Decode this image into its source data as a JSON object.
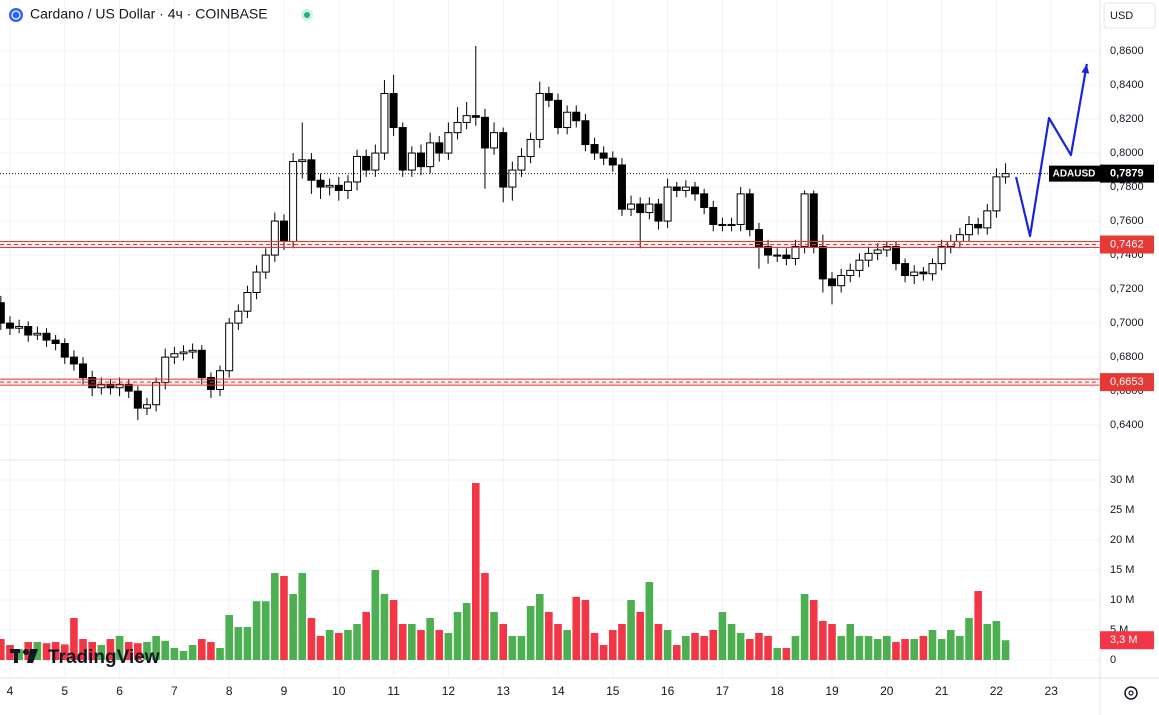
{
  "chart_data": {
    "type": "candlestick",
    "title": "Cardano / US Dollar · 4ч · COINBASE",
    "currency": "USD",
    "watermark": "TradingView",
    "symbol": "ADAUSD",
    "x": [
      3.833,
      4,
      4.167,
      4.333,
      4.5,
      4.667,
      4.833,
      5,
      5.167,
      5.333,
      5.5,
      5.667,
      5.833,
      6,
      6.167,
      6.333,
      6.5,
      6.667,
      6.833,
      7,
      7.167,
      7.333,
      7.5,
      7.667,
      7.833,
      8,
      8.167,
      8.333,
      8.5,
      8.667,
      8.833,
      9,
      9.167,
      9.333,
      9.5,
      9.667,
      9.833,
      10,
      10.167,
      10.333,
      10.5,
      10.667,
      10.833,
      11,
      11.167,
      11.333,
      11.5,
      11.667,
      11.833,
      12,
      12.167,
      12.333,
      12.5,
      12.667,
      12.833,
      13,
      13.167,
      13.333,
      13.5,
      13.667,
      13.833,
      14,
      14.167,
      14.333,
      14.5,
      14.667,
      14.833,
      15,
      15.167,
      15.333,
      15.5,
      15.667,
      15.833,
      16,
      16.167,
      16.333,
      16.5,
      16.667,
      16.833,
      17,
      17.167,
      17.333,
      17.5,
      17.667,
      17.833,
      18,
      18.167,
      18.333,
      18.5,
      18.667,
      18.833,
      19,
      19.167,
      19.333,
      19.5,
      19.667,
      19.833,
      20,
      20.167,
      20.333,
      20.5,
      20.667,
      20.833,
      21,
      21.167,
      21.333,
      21.5,
      21.667,
      21.833,
      22,
      22.167
    ],
    "open": [
      0.712,
      0.7,
      0.697,
      0.698,
      0.693,
      0.694,
      0.69,
      0.688,
      0.68,
      0.676,
      0.668,
      0.662,
      0.664,
      0.662,
      0.664,
      0.66,
      0.65,
      0.652,
      0.665,
      0.68,
      0.682,
      0.683,
      0.684,
      0.668,
      0.661,
      0.672,
      0.7,
      0.707,
      0.718,
      0.73,
      0.74,
      0.76,
      0.748,
      0.795,
      0.796,
      0.784,
      0.78,
      0.781,
      0.778,
      0.783,
      0.798,
      0.79,
      0.8,
      0.835,
      0.815,
      0.79,
      0.8,
      0.792,
      0.806,
      0.8,
      0.812,
      0.818,
      0.822,
      0.821,
      0.803,
      0.812,
      0.78,
      0.79,
      0.798,
      0.808,
      0.835,
      0.831,
      0.815,
      0.824,
      0.819,
      0.805,
      0.8,
      0.797,
      0.793,
      0.767,
      0.77,
      0.765,
      0.77,
      0.76,
      0.78,
      0.778,
      0.78,
      0.776,
      0.768,
      0.758,
      0.758,
      0.758,
      0.776,
      0.755,
      0.745,
      0.74,
      0.74,
      0.738,
      0.745,
      0.776,
      0.745,
      0.726,
      0.722,
      0.728,
      0.731,
      0.737,
      0.741,
      0.743,
      0.745,
      0.735,
      0.728,
      0.73,
      0.729,
      0.735,
      0.745,
      0.748,
      0.752,
      0.758,
      0.756,
      0.766,
      0.786
    ],
    "high": [
      0.716,
      0.704,
      0.702,
      0.701,
      0.698,
      0.697,
      0.693,
      0.691,
      0.684,
      0.68,
      0.672,
      0.668,
      0.667,
      0.668,
      0.667,
      0.663,
      0.656,
      0.668,
      0.685,
      0.686,
      0.687,
      0.688,
      0.687,
      0.671,
      0.675,
      0.703,
      0.711,
      0.722,
      0.734,
      0.744,
      0.765,
      0.764,
      0.8,
      0.818,
      0.8,
      0.788,
      0.785,
      0.786,
      0.787,
      0.802,
      0.802,
      0.805,
      0.843,
      0.846,
      0.818,
      0.804,
      0.805,
      0.812,
      0.81,
      0.818,
      0.827,
      0.83,
      0.863,
      0.826,
      0.818,
      0.815,
      0.795,
      0.803,
      0.812,
      0.842,
      0.839,
      0.835,
      0.828,
      0.828,
      0.823,
      0.809,
      0.804,
      0.801,
      0.797,
      0.775,
      0.774,
      0.774,
      0.773,
      0.785,
      0.783,
      0.784,
      0.783,
      0.779,
      0.772,
      0.762,
      0.762,
      0.78,
      0.779,
      0.759,
      0.749,
      0.744,
      0.744,
      0.749,
      0.778,
      0.778,
      0.752,
      0.73,
      0.732,
      0.735,
      0.741,
      0.745,
      0.747,
      0.748,
      0.748,
      0.738,
      0.734,
      0.733,
      0.738,
      0.749,
      0.752,
      0.756,
      0.763,
      0.762,
      0.77,
      0.791,
      0.794
    ],
    "low": [
      0.696,
      0.693,
      0.694,
      0.689,
      0.69,
      0.686,
      0.684,
      0.676,
      0.672,
      0.664,
      0.657,
      0.658,
      0.658,
      0.657,
      0.656,
      0.643,
      0.646,
      0.648,
      0.661,
      0.676,
      0.678,
      0.679,
      0.664,
      0.656,
      0.657,
      0.668,
      0.696,
      0.703,
      0.714,
      0.726,
      0.736,
      0.743,
      0.744,
      0.785,
      0.776,
      0.773,
      0.775,
      0.772,
      0.773,
      0.778,
      0.786,
      0.786,
      0.796,
      0.81,
      0.786,
      0.786,
      0.787,
      0.788,
      0.795,
      0.796,
      0.808,
      0.814,
      0.816,
      0.779,
      0.799,
      0.771,
      0.772,
      0.786,
      0.794,
      0.803,
      0.827,
      0.811,
      0.811,
      0.815,
      0.801,
      0.796,
      0.793,
      0.789,
      0.763,
      0.763,
      0.744,
      0.761,
      0.755,
      0.756,
      0.774,
      0.774,
      0.772,
      0.764,
      0.754,
      0.754,
      0.754,
      0.754,
      0.751,
      0.732,
      0.735,
      0.736,
      0.734,
      0.734,
      0.741,
      0.741,
      0.718,
      0.711,
      0.718,
      0.724,
      0.727,
      0.733,
      0.737,
      0.739,
      0.731,
      0.724,
      0.723,
      0.725,
      0.725,
      0.731,
      0.741,
      0.744,
      0.748,
      0.752,
      0.752,
      0.762,
      0.782
    ],
    "close": [
      0.7,
      0.697,
      0.698,
      0.693,
      0.694,
      0.69,
      0.688,
      0.68,
      0.676,
      0.668,
      0.662,
      0.664,
      0.662,
      0.664,
      0.66,
      0.65,
      0.652,
      0.665,
      0.68,
      0.682,
      0.683,
      0.684,
      0.668,
      0.661,
      0.672,
      0.7,
      0.707,
      0.718,
      0.73,
      0.74,
      0.76,
      0.748,
      0.795,
      0.796,
      0.784,
      0.78,
      0.781,
      0.778,
      0.783,
      0.798,
      0.79,
      0.8,
      0.835,
      0.815,
      0.79,
      0.8,
      0.792,
      0.806,
      0.8,
      0.812,
      0.818,
      0.822,
      0.821,
      0.803,
      0.812,
      0.78,
      0.79,
      0.798,
      0.808,
      0.835,
      0.831,
      0.815,
      0.824,
      0.819,
      0.805,
      0.8,
      0.797,
      0.793,
      0.767,
      0.77,
      0.765,
      0.77,
      0.76,
      0.78,
      0.778,
      0.78,
      0.776,
      0.768,
      0.758,
      0.758,
      0.758,
      0.776,
      0.755,
      0.745,
      0.74,
      0.74,
      0.738,
      0.745,
      0.776,
      0.745,
      0.726,
      0.722,
      0.728,
      0.731,
      0.737,
      0.741,
      0.743,
      0.745,
      0.735,
      0.728,
      0.73,
      0.729,
      0.735,
      0.745,
      0.748,
      0.752,
      0.758,
      0.756,
      0.766,
      0.786,
      0.7879
    ],
    "volume": [
      3.5,
      2.5,
      1.8,
      3,
      3,
      2.8,
      3,
      2.6,
      7,
      3.5,
      3,
      2.5,
      3.5,
      4,
      3,
      2.8,
      3,
      4,
      3.2,
      2,
      1.5,
      2.5,
      3.5,
      3,
      2,
      7.5,
      5.5,
      5.5,
      9.8,
      9.8,
      14.5,
      14,
      11,
      14.5,
      7,
      4,
      5,
      4.5,
      5,
      6,
      8,
      15,
      11,
      10,
      6,
      6,
      5,
      7,
      5,
      4.5,
      8,
      9.5,
      29.5,
      14.5,
      8,
      6,
      4,
      4,
      9,
      11,
      8,
      6,
      5,
      10.5,
      10,
      4.5,
      2.5,
      5,
      6,
      10,
      8,
      13,
      6,
      5,
      2.5,
      4,
      4.5,
      4,
      5,
      8,
      6,
      4.5,
      3.5,
      4.5,
      4,
      2,
      2,
      4,
      11,
      10,
      6.5,
      6,
      4,
      6,
      4,
      4,
      3.5,
      4,
      3,
      3.5,
      3.5,
      4,
      5,
      3.5,
      5,
      4,
      7,
      11.5,
      6,
      6.5,
      3.3
    ],
    "up_color": "#ffffff",
    "down_color": "#000000",
    "border_color": "#000000",
    "volume_up_color": "#4caf50",
    "volume_down_color": "#f23645",
    "xlim": [
      3.818,
      23.89
    ],
    "xticks": [
      4,
      5,
      6,
      7,
      8,
      9,
      10,
      11,
      12,
      13,
      14,
      15,
      16,
      17,
      18,
      19,
      20,
      21,
      22,
      23
    ],
    "ylim": [
      0.6195,
      0.89
    ],
    "yticks": [
      {
        "value": 0.86,
        "label": "0,8600"
      },
      {
        "value": 0.84,
        "label": "0,8400"
      },
      {
        "value": 0.82,
        "label": "0,8200"
      },
      {
        "value": 0.8,
        "label": "0,8000"
      },
      {
        "value": 0.78,
        "label": "0,7800"
      },
      {
        "value": 0.76,
        "label": "0,7600"
      },
      {
        "value": 0.74,
        "label": "0,7400"
      },
      {
        "value": 0.72,
        "label": "0,7200"
      },
      {
        "value": 0.7,
        "label": "0,7000"
      },
      {
        "value": 0.68,
        "label": "0,6800"
      },
      {
        "value": 0.66,
        "label": "0,6600"
      },
      {
        "value": 0.64,
        "label": "0,6400"
      }
    ],
    "volume_ylim": [
      -1.33,
      33.33
    ],
    "volume_ticks": [
      {
        "value": 30,
        "label": "30 M"
      },
      {
        "value": 25,
        "label": "25 M"
      },
      {
        "value": 20,
        "label": "20 M"
      },
      {
        "value": 15,
        "label": "15 M"
      },
      {
        "value": 10,
        "label": "10 M"
      },
      {
        "value": 5,
        "label": "5 M"
      },
      0
    ],
    "grid": true,
    "last_price": {
      "value": 0.7879,
      "label": "0,7879"
    },
    "last_volume": {
      "value": 3.3,
      "label": "3,3 M"
    },
    "levels": [
      {
        "value": 0.7462,
        "label": "0,7462"
      },
      {
        "value": 0.6653,
        "label": "0,6653"
      }
    ],
    "level_color": "#e53935",
    "drawing": {
      "x": [
        22.358,
        22.613,
        22.96,
        23.36,
        23.65
      ],
      "y": [
        0.7859,
        0.7512,
        0.8206,
        0.7988,
        0.8524
      ],
      "color": "#1a24d8"
    }
  }
}
